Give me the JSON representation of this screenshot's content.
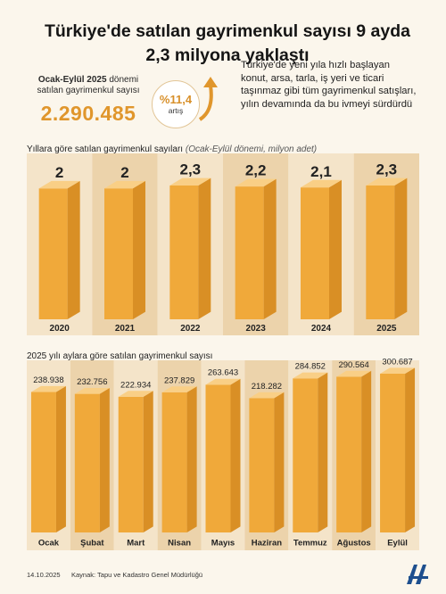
{
  "headline": {
    "line1": "Türkiye'de satılan gayrimenkul sayısı 9 ayda",
    "line2": "2,3 milyona yaklaştı"
  },
  "kpi": {
    "label_bold": "Ocak-Eylül 2025",
    "label_rest": " dönemi",
    "label_line2": "satılan gayrimenkul sayısı",
    "value": "2.290.485"
  },
  "badge": {
    "percent": "%11,4",
    "label": "artış"
  },
  "description": "Türkiye'de yeni yıla hızlı başlayan konut, arsa, tarla, iş yeri ve ticari taşınmaz gibi tüm gayrimenkul satışları, yılın devamında da bu ivmeyi sürdürdü",
  "yearly_title": "Yıllara göre satılan gayrimenkul sayıları",
  "yearly_subtitle": "(Ocak-Eylül dönemi, milyon adet)",
  "monthly_title": "2025 yılı aylara göre satılan gayrimenkul sayısı",
  "footer": {
    "date": "14.10.2025",
    "source": "Kaynak: Tapu ve Kadastro Genel Müdürlüğü"
  },
  "colors": {
    "bar_front": "#f0a93a",
    "bar_side": "#d98f25",
    "bar_top": "#f9cf86",
    "accent": "#e0962c",
    "band_light": "#f4e4c9",
    "band_dark": "#ecd3ab",
    "logo": "#1d4f8e"
  },
  "icons": {
    "badge_arrow": "curved-up-arrow-icon",
    "logo": "aa-logo-icon"
  },
  "chart_data": [
    {
      "type": "bar",
      "title": "Yıllara göre satılan gayrimenkul sayıları",
      "subtitle": "(Ocak-Eylül dönemi, milyon adet)",
      "categories": [
        "2020",
        "2021",
        "2022",
        "2023",
        "2024",
        "2025"
      ],
      "values": [
        2,
        2,
        2.3,
        2.2,
        2.1,
        2.3
      ],
      "value_labels": [
        "2",
        "2",
        "2,3",
        "2,2",
        "2,1",
        "2,3"
      ],
      "ylim": [
        0,
        2.3
      ]
    },
    {
      "type": "bar",
      "title": "2025 yılı aylara göre satılan gayrimenkul sayısı",
      "categories": [
        "Ocak",
        "Şubat",
        "Mart",
        "Nisan",
        "Mayıs",
        "Haziran",
        "Temmuz",
        "Ağustos",
        "Eylül"
      ],
      "values": [
        238938,
        232756,
        222934,
        237829,
        263643,
        218282,
        284852,
        290564,
        300687
      ],
      "value_labels": [
        "238.938",
        "232.756",
        "222.934",
        "237.829",
        "263.643",
        "218.282",
        "284.852",
        "290.564",
        "300.687"
      ],
      "ylim": [
        0,
        300687
      ]
    }
  ]
}
